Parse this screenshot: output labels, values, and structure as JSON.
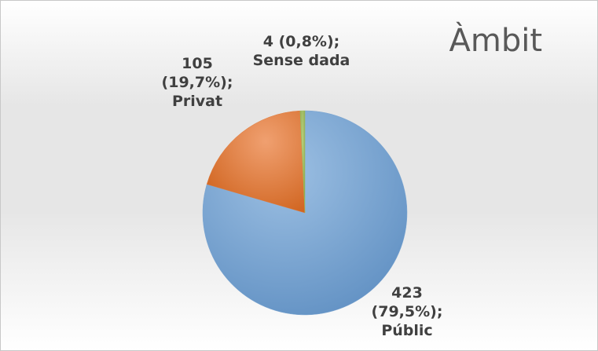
{
  "chart_data": {
    "type": "pie",
    "title": "Àmbit",
    "categories": [
      "Públic",
      "Privat",
      "Sense dada"
    ],
    "values": [
      423,
      105,
      4
    ],
    "value_labels": [
      "423 (79,5%);",
      "105 (19,7%);",
      "4 (0,8%);"
    ],
    "colors": [
      "#7aa5d1",
      "#e07a3a",
      "#9bbb59"
    ]
  }
}
